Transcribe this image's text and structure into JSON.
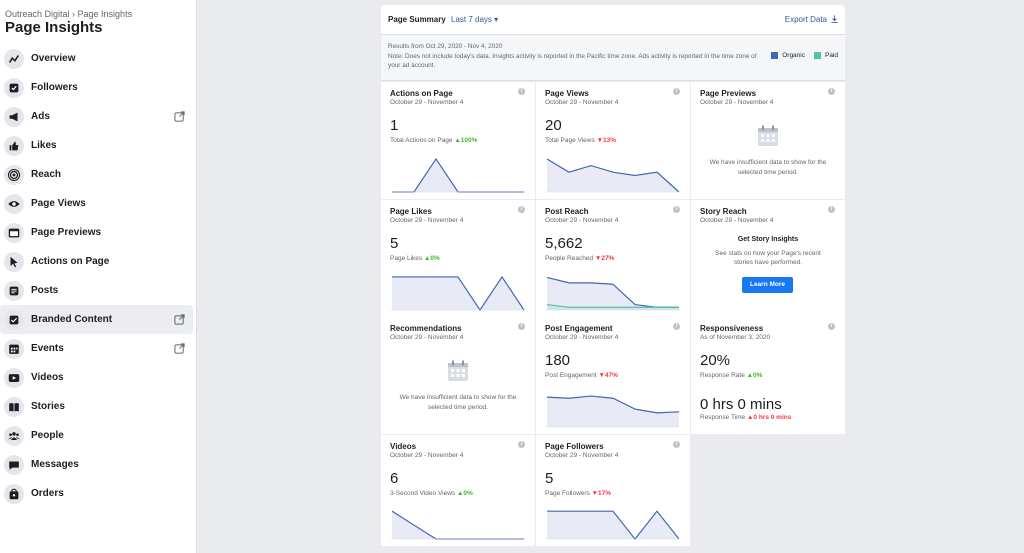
{
  "sidebar": {
    "breadcrumb": "Outreach Digital › Page Insights",
    "title": "Page Insights",
    "items": [
      {
        "name": "overview",
        "label": "Overview",
        "icon": "trend-icon",
        "external": false,
        "active": false
      },
      {
        "name": "followers",
        "label": "Followers",
        "icon": "check-icon",
        "external": false,
        "active": false
      },
      {
        "name": "ads",
        "label": "Ads",
        "icon": "megaphone-icon",
        "external": true,
        "active": false
      },
      {
        "name": "likes",
        "label": "Likes",
        "icon": "thumbs-up-icon",
        "external": false,
        "active": false
      },
      {
        "name": "reach",
        "label": "Reach",
        "icon": "broadcast-icon",
        "external": false,
        "active": false
      },
      {
        "name": "page-views",
        "label": "Page Views",
        "icon": "eye-icon",
        "external": false,
        "active": false
      },
      {
        "name": "page-previews",
        "label": "Page Previews",
        "icon": "browser-icon",
        "external": false,
        "active": false
      },
      {
        "name": "actions-on-page",
        "label": "Actions on Page",
        "icon": "cursor-icon",
        "external": false,
        "active": false
      },
      {
        "name": "posts",
        "label": "Posts",
        "icon": "document-icon",
        "external": false,
        "active": false
      },
      {
        "name": "branded-content",
        "label": "Branded Content",
        "icon": "handshake-icon",
        "external": true,
        "active": true
      },
      {
        "name": "events",
        "label": "Events",
        "icon": "calendar-icon",
        "external": true,
        "active": false
      },
      {
        "name": "videos",
        "label": "Videos",
        "icon": "video-icon",
        "external": false,
        "active": false
      },
      {
        "name": "stories",
        "label": "Stories",
        "icon": "book-icon",
        "external": false,
        "active": false
      },
      {
        "name": "people",
        "label": "People",
        "icon": "people-icon",
        "external": false,
        "active": false
      },
      {
        "name": "messages",
        "label": "Messages",
        "icon": "chat-icon",
        "external": false,
        "active": false
      },
      {
        "name": "orders",
        "label": "Orders",
        "icon": "bag-icon",
        "external": false,
        "active": false
      }
    ]
  },
  "summary": {
    "title": "Page Summary",
    "range": "Last 7 days ▾",
    "export": "Export Data",
    "results": "Results from Oct 29, 2020 - Nov 4, 2020",
    "note": "Note: Does not include today's data. Insights activity is reported in the Pacific time zone. Ads activity is reported in the time zone of your ad account.",
    "legend": [
      {
        "label": "Organic",
        "color": "#4267b2"
      },
      {
        "label": "Paid",
        "color": "#52c1a5"
      }
    ]
  },
  "colors": {
    "organic": "#4267b2",
    "paid": "#52c1a5",
    "fill": "#e8ebf5"
  },
  "cards": {
    "actions": {
      "title": "Actions on Page",
      "sub": "October 29 - November 4",
      "value": "1",
      "caption": "Total Actions on Page",
      "delta": "▲100%",
      "series": [
        0,
        0,
        1,
        0,
        0,
        0,
        0
      ]
    },
    "views": {
      "title": "Page Views",
      "sub": "October 29 - November 4",
      "value": "20",
      "caption": "Total Page Views",
      "delta": "▼13%",
      "series": [
        5,
        3,
        4,
        3,
        2.5,
        3,
        0
      ]
    },
    "previews": {
      "title": "Page Previews",
      "sub": "October 29 - November 4",
      "empty": "We have insufficient data to show for the selected time period."
    },
    "likes": {
      "title": "Page Likes",
      "sub": "October 29 - November 4",
      "value": "5",
      "caption": "Page Likes",
      "delta": "▲0%",
      "series": [
        1,
        1,
        1,
        1,
        0,
        1,
        0
      ]
    },
    "reach": {
      "title": "Post Reach",
      "sub": "October 29 - November 4",
      "value": "5,662",
      "caption": "People Reached",
      "delta": "▼27%",
      "series": [
        1.2,
        1.0,
        1.0,
        0.95,
        0.2,
        0.1,
        0.1
      ],
      "series2": [
        0.2,
        0.1,
        0.1,
        0.1,
        0.1,
        0.1,
        0.1
      ]
    },
    "story": {
      "title": "Story Reach",
      "sub": "October 29 - November 4",
      "head": "Get Story Insights",
      "text": "See stats on how your Page's recent stories have performed.",
      "button": "Learn More"
    },
    "recommendations": {
      "title": "Recommendations",
      "sub": "October 29 - November 4",
      "empty": "We have insufficient data to show for the selected time period."
    },
    "engagement": {
      "title": "Post Engagement",
      "sub": "October 29 - November 4",
      "value": "180",
      "caption": "Post Engagement",
      "delta": "▼47%",
      "series": [
        5.5,
        5.3,
        5.7,
        5.3,
        3.3,
        2.6,
        2.8
      ]
    },
    "responsiveness": {
      "title": "Responsiveness",
      "sub": "As of November 3, 2020",
      "value": "20%",
      "caption": "Response Rate",
      "delta": "▲0%",
      "value2": "0 hrs 0 mins",
      "caption2": "Response Time",
      "delta2": "▲0 hrs 0 mins"
    },
    "videos": {
      "title": "Videos",
      "sub": "October 29 - November 4",
      "value": "6",
      "caption": "3-Second Video Views",
      "delta": "▲0%",
      "series": [
        4,
        2,
        0,
        0,
        0,
        0,
        0
      ]
    },
    "followers": {
      "title": "Page Followers",
      "sub": "October 29 - November 4",
      "value": "5",
      "caption": "Page Followers",
      "delta": "▼17%",
      "series": [
        1,
        1,
        1,
        1,
        0,
        1,
        0
      ]
    }
  }
}
